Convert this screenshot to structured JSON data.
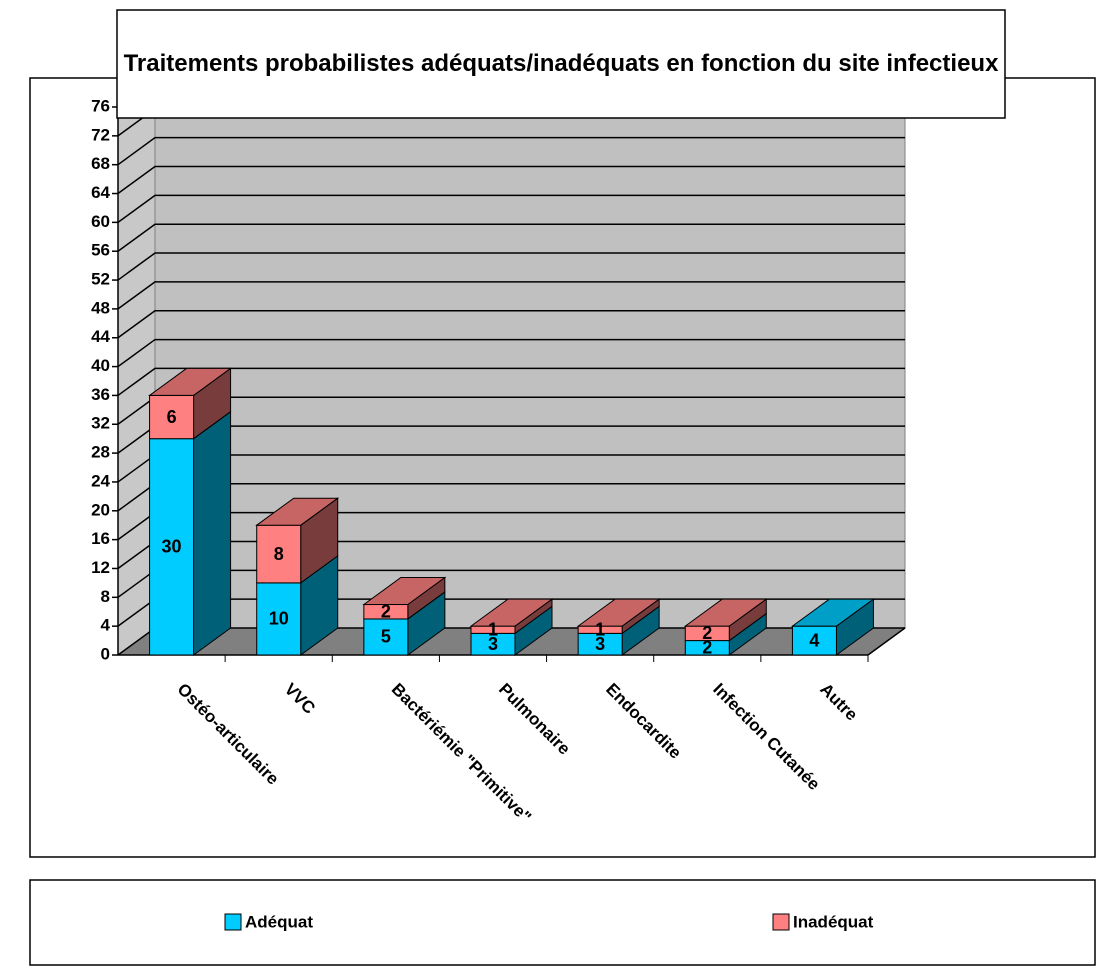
{
  "chart_data": {
    "type": "bar3d_stacked",
    "title": "Traitements probabilistes adéquats/inadéquats en fonction du site infectieux",
    "categories": [
      "Ostéo-articulaire",
      "VVC",
      "Bactériémie \"Primitive\"",
      "Pulmonaire",
      "Endocardite",
      "Infection Cutanée",
      "Autre"
    ],
    "series": [
      {
        "name": "Adéquat",
        "color": "#00ccff",
        "values": [
          30,
          10,
          5,
          3,
          3,
          2,
          4
        ]
      },
      {
        "name": "Inadéquat",
        "color": "#ff8080",
        "values": [
          6,
          8,
          2,
          1,
          1,
          2,
          null
        ]
      }
    ],
    "ylim": [
      0,
      76
    ],
    "yticks": [
      0,
      4,
      8,
      12,
      16,
      20,
      24,
      28,
      32,
      36,
      40,
      44,
      48,
      52,
      56,
      60,
      64,
      68,
      72,
      76
    ],
    "grid": true,
    "legend": "bottom"
  }
}
